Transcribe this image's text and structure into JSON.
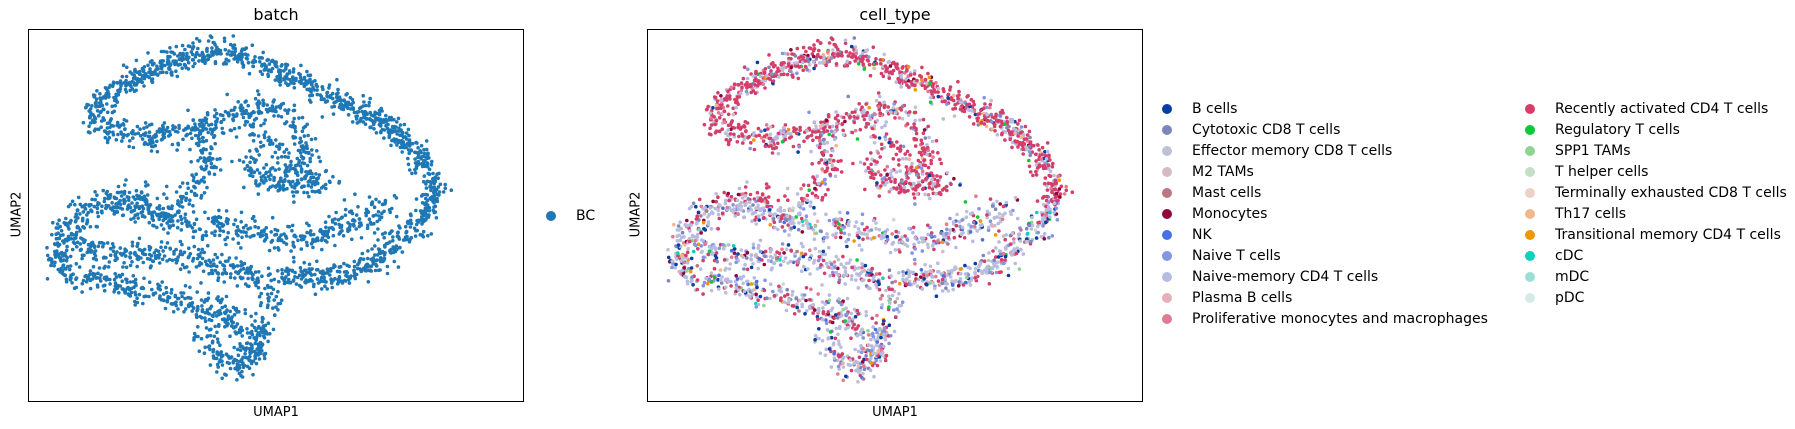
{
  "chart_data": [
    {
      "type": "scatter",
      "title": "batch",
      "xlabel": "UMAP1",
      "ylabel": "UMAP2",
      "xticks": false,
      "yticks": false,
      "legend_placement": "right",
      "series": [
        {
          "name": "BC",
          "color": "#1f77b4"
        }
      ]
    },
    {
      "type": "scatter",
      "title": "cell_type",
      "xlabel": "UMAP1",
      "ylabel": "UMAP2",
      "xticks": false,
      "yticks": false,
      "legend_placement": "right",
      "series": [
        {
          "name": "B cells",
          "color": "#023fa5"
        },
        {
          "name": "Cytotoxic CD8 T cells",
          "color": "#7d87b9"
        },
        {
          "name": "Effector memory CD8 T cells",
          "color": "#bec1d4"
        },
        {
          "name": "M2 TAMs",
          "color": "#d6bcc0"
        },
        {
          "name": "Mast cells",
          "color": "#bb7784"
        },
        {
          "name": "Monocytes",
          "color": "#8e063b"
        },
        {
          "name": "NK",
          "color": "#4a6fe3"
        },
        {
          "name": "Naive T cells",
          "color": "#8595e1"
        },
        {
          "name": "Naive-memory CD4 T cells",
          "color": "#b5bbe3"
        },
        {
          "name": "Plasma B cells",
          "color": "#e6afb9"
        },
        {
          "name": "Proliferative monocytes and macrophages",
          "color": "#e07b91"
        },
        {
          "name": "Recently activated CD4 T cells",
          "color": "#d33f6a"
        },
        {
          "name": "Regulatory T cells",
          "color": "#11c638"
        },
        {
          "name": "SPP1 TAMs",
          "color": "#8dd593"
        },
        {
          "name": "T helper cells",
          "color": "#c6dec7"
        },
        {
          "name": "Terminally exhausted CD8 T cells",
          "color": "#ead3c6"
        },
        {
          "name": "Th17 cells",
          "color": "#f0b98d"
        },
        {
          "name": "Transitional memory CD4 T cells",
          "color": "#ef9708"
        },
        {
          "name": "cDC",
          "color": "#0fcfc0"
        },
        {
          "name": "mDC",
          "color": "#9cded6"
        },
        {
          "name": "pDC",
          "color": "#d5eae7"
        }
      ]
    }
  ]
}
